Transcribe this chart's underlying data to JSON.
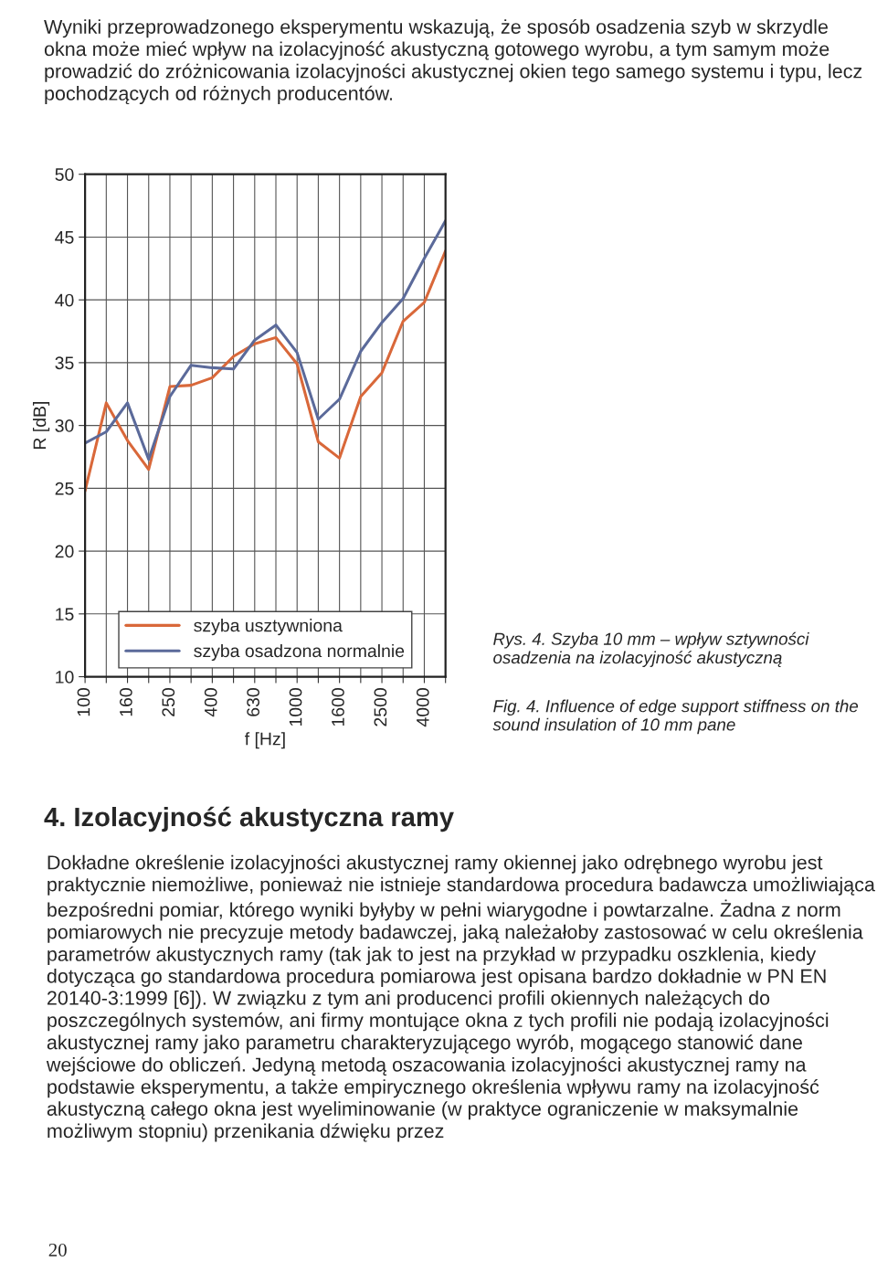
{
  "chart_data": {
    "type": "line",
    "xlabel": "f [Hz]",
    "ylabel": "R [dB]",
    "categories": [
      "100",
      null,
      "160",
      null,
      "250",
      null,
      "400",
      null,
      "630",
      null,
      "1000",
      null,
      "1600",
      null,
      "2500",
      null,
      "4000",
      null
    ],
    "series": [
      {
        "name": "szyba usztywniona",
        "color": "#d9683a",
        "values": [
          24.8,
          31.8,
          28.8,
          26.5,
          33.1,
          33.2,
          33.8,
          35.5,
          36.5,
          37.0,
          34.9,
          28.7,
          27.4,
          32.3,
          34.2,
          38.3,
          39.8,
          43.9
        ]
      },
      {
        "name": "szyba osadzona normalnie",
        "color": "#5b6a9a",
        "values": [
          28.6,
          29.5,
          31.8,
          27.3,
          32.3,
          34.8,
          34.6,
          34.5,
          36.8,
          38.0,
          35.8,
          30.5,
          32.1,
          35.9,
          38.2,
          40.1,
          43.3,
          46.3
        ]
      }
    ],
    "ylim": [
      10,
      50
    ],
    "yticks": [
      10,
      15,
      20,
      25,
      30,
      35,
      40,
      45,
      50
    ],
    "grid": true,
    "legend": "bottom",
    "marker": "none",
    "line_style": "solid",
    "annotations": [
      "Wyniki przeprowadzonego eksperymentu wskazują, że sposób osadzenia szyb w skrzydle okna może mieć wpływ na izolacyjność akustyczną gotowego wyrobu, a tym samym może prowadzić do zróżnicowania izolacyjności akustycznej okien tego samego systemu i typu, lecz pochodzących od różnych producentów.",
      "Rys. 4. Szyba 10 mm – wpływ sztywności osadzenia na izolacyjność akustyczną",
      "Fig. 4. Influence of edge support stiffness on the sound insulation of 10 mm pane",
      "4. Izolacyjność akustyczna ramy",
      "Dokładne określenie izolacyjności akustycznej ramy okiennej jako odrębnego wyrobu jest praktycznie niemożliwe, ponieważ nie istnieje standardowa procedura badawcza umożliwiająca bezpośredni pomiar, którego wyniki byłyby w pełni wiarygodne i powtarzalne. Żadna z norm pomiarowych nie precyzuje metody badawczej, jaką należałoby zastosować w celu określenia parametrów akustycznych ramy (tak jak to jest na przykład w przypadku oszklenia, kiedy dotycząca go standardowa procedura pomiarowa jest opisana bardzo dokładnie w PN EN 20140-3:1999 [6]). W związku z tym ani producenci profili okiennych należących do poszczególnych systemów, ani firmy montujące okna z tych profili nie podają izolacyjności akustycznej ramy jako parametru charakteryzującego wyrób, mogącego stanowić dane wejściowe do obliczeń. Jedyną metodą oszacowania izolacyjności akustycznej ramy na podstawie eksperymentu, a także empirycznego określenia wpływu ramy na izolacyjność akustyczną całego okna jest wyeliminowanie (w praktyce ograniczenie w maksymalnie możliwym stopniu) przenikania dźwięku przez",
      "20"
    ]
  }
}
